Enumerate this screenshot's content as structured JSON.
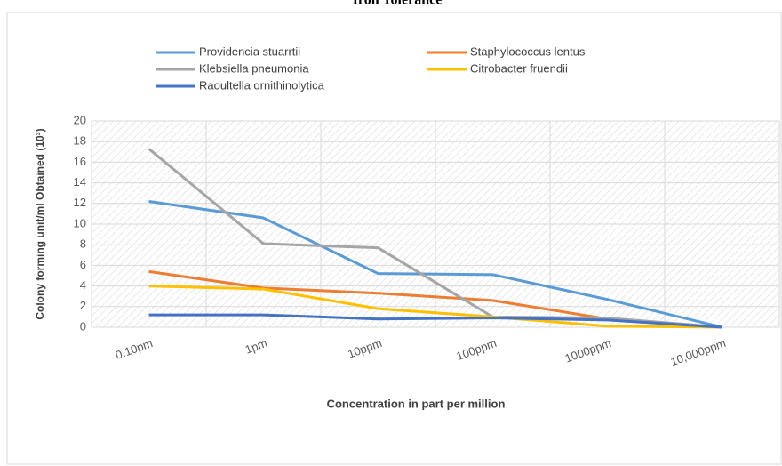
{
  "chart_data": {
    "type": "line",
    "title": "Iron Tolerance",
    "xlabel": "Concentration in part per million",
    "ylabel": "Colony forming unit/ml Obtained (10³)",
    "categories": [
      "0.10pm",
      "1pm",
      "10ppm",
      "100ppm",
      "1000ppm",
      "10,000ppm"
    ],
    "series": [
      {
        "name": "Providencia stuarrtii",
        "color": "#5b9bd5",
        "values": [
          12.2,
          10.6,
          5.2,
          5.1,
          2.7,
          0
        ]
      },
      {
        "name": "Staphylococcus lentus",
        "color": "#ed7d31",
        "values": [
          5.4,
          3.8,
          3.3,
          2.6,
          0.8,
          0
        ]
      },
      {
        "name": "Klebsiella pneumonia",
        "color": "#a5a5a5",
        "values": [
          17.3,
          8.1,
          7.7,
          1.0,
          0.9,
          0
        ]
      },
      {
        "name": "Citrobacter fruendii",
        "color": "#ffc000",
        "values": [
          4.0,
          3.7,
          1.8,
          1.0,
          0.1,
          0
        ]
      },
      {
        "name": "Raoultella ornithinolytica",
        "color": "#4472c4",
        "values": [
          1.2,
          1.2,
          0.8,
          0.9,
          0.7,
          0
        ]
      }
    ],
    "ylim": [
      0,
      20
    ],
    "yticks": [
      0,
      2,
      4,
      6,
      8,
      10,
      12,
      14,
      16,
      18,
      20
    ],
    "grid": true
  }
}
